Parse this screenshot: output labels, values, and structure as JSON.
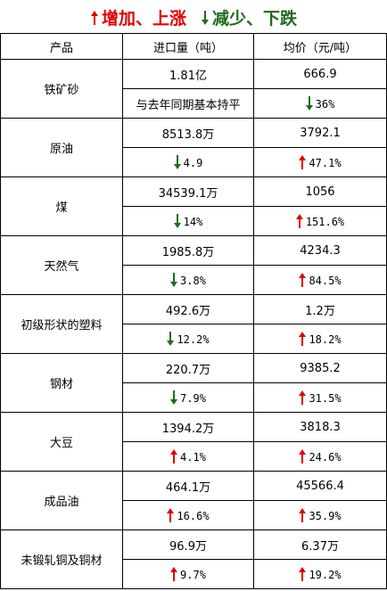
{
  "legend": {
    "increase": "增加、上涨",
    "decrease": "减少、下跌"
  },
  "headers": [
    "产品",
    "进口量（吨）",
    "均价（元/吨）"
  ],
  "colors": {
    "up": "#e00000",
    "down": "#1e6b1e"
  },
  "rows": [
    {
      "name": "铁矿砂",
      "volume": "1.81亿",
      "price": "666.9",
      "volume_change": {
        "dir": "none",
        "text": "与去年同期基本持平"
      },
      "price_change": {
        "dir": "down",
        "text": "36%"
      }
    },
    {
      "name": "原油",
      "volume": "8513.8万",
      "price": "3792.1",
      "volume_change": {
        "dir": "down",
        "text": "4.9"
      },
      "price_change": {
        "dir": "up",
        "text": "47.1%"
      }
    },
    {
      "name": "煤",
      "volume": "34539.1万",
      "price": "1056",
      "volume_change": {
        "dir": "down",
        "text": "14%"
      },
      "price_change": {
        "dir": "up",
        "text": "151.6%"
      }
    },
    {
      "name": "天然气",
      "volume": "1985.8万",
      "price": "4234.3",
      "volume_change": {
        "dir": "down",
        "text": "3.8%"
      },
      "price_change": {
        "dir": "up",
        "text": "84.5%"
      }
    },
    {
      "name": "初级形状的塑料",
      "volume": "492.6万",
      "price": "1.2万",
      "volume_change": {
        "dir": "down",
        "text": "12.2%"
      },
      "price_change": {
        "dir": "up",
        "text": "18.2%"
      }
    },
    {
      "name": "钢材",
      "volume": "220.7万",
      "price": "9385.2",
      "volume_change": {
        "dir": "down",
        "text": "7.9%"
      },
      "price_change": {
        "dir": "up",
        "text": "31.5%"
      }
    },
    {
      "name": "大豆",
      "volume": "1394.2万",
      "price": "3818.3",
      "volume_change": {
        "dir": "up",
        "text": "4.1%"
      },
      "price_change": {
        "dir": "up",
        "text": "24.6%"
      }
    },
    {
      "name": "成品油",
      "volume": "464.1万",
      "price": "45566.4",
      "volume_change": {
        "dir": "up",
        "text": "16.6%"
      },
      "price_change": {
        "dir": "up",
        "text": "35.9%"
      }
    },
    {
      "name": "未锻轧铜及铜材",
      "volume": "96.9万",
      "price": "6.37万",
      "volume_change": {
        "dir": "up",
        "text": "9.7%"
      },
      "price_change": {
        "dir": "up",
        "text": "19.2%"
      }
    }
  ]
}
